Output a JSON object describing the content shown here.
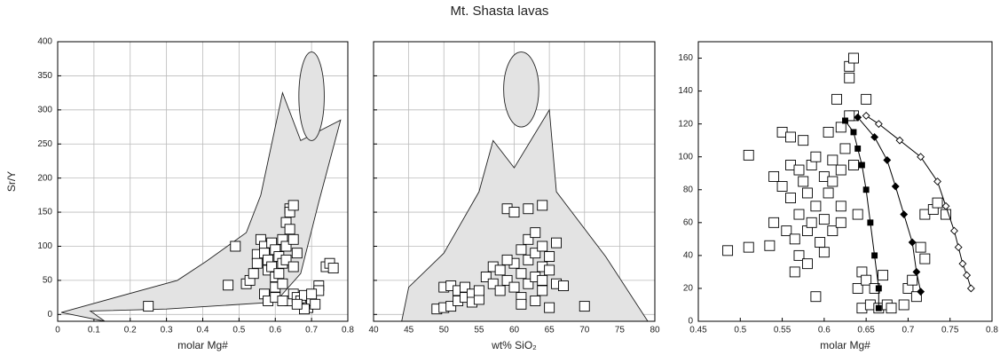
{
  "title": "Mt. Shasta lavas",
  "chart_data": [
    {
      "type": "scatter",
      "xlabel": "molar Mg#",
      "ylabel": "Sr/Y",
      "xlim": [
        0,
        0.8
      ],
      "ylim": [
        -10,
        400
      ],
      "xticks": [
        0,
        0.1,
        0.2,
        0.3,
        0.4,
        0.5,
        0.6,
        0.7,
        0.8
      ],
      "yticks": [
        0,
        50,
        100,
        150,
        200,
        250,
        300,
        350,
        400
      ],
      "grid": true,
      "ytick_labels": true,
      "region_color": "#e3e3e3",
      "regions": [
        {
          "x": [
            0.01,
            0.33,
            0.41,
            0.52,
            0.56,
            0.62,
            0.67,
            0.78,
            0.72,
            0.67,
            0.6,
            0.3,
            0.09,
            0.13
          ],
          "y": [
            3,
            50,
            78,
            120,
            175,
            325,
            255,
            285,
            165,
            60,
            18,
            8,
            5,
            -10
          ]
        }
      ],
      "ellipses": [
        {
          "cx": 0.7,
          "cy": 320,
          "rx": 0.035,
          "ry": 65
        }
      ],
      "series": [
        {
          "marker": "square-open",
          "color": "#000000",
          "x": [
            0.25,
            0.49,
            0.47,
            0.52,
            0.53,
            0.54,
            0.55,
            0.55,
            0.56,
            0.57,
            0.57,
            0.58,
            0.58,
            0.59,
            0.59,
            0.6,
            0.6,
            0.6,
            0.61,
            0.61,
            0.62,
            0.62,
            0.62,
            0.63,
            0.63,
            0.63,
            0.64,
            0.64,
            0.64,
            0.65,
            0.65,
            0.65,
            0.66,
            0.57,
            0.58,
            0.6,
            0.64,
            0.65,
            0.66,
            0.67,
            0.68,
            0.69,
            0.7,
            0.71,
            0.72,
            0.72,
            0.74,
            0.75,
            0.76,
            0.68,
            0.66,
            0.7,
            0.62
          ],
          "y": [
            12,
            100,
            43,
            45,
            50,
            60,
            88,
            75,
            110,
            100,
            90,
            80,
            65,
            105,
            70,
            95,
            55,
            40,
            85,
            60,
            110,
            75,
            45,
            135,
            100,
            80,
            155,
            150,
            125,
            110,
            160,
            70,
            90,
            30,
            20,
            25,
            20,
            30,
            25,
            20,
            28,
            10,
            20,
            15,
            42,
            35,
            70,
            75,
            68,
            8,
            15,
            30,
            20
          ]
        }
      ]
    },
    {
      "type": "scatter",
      "xlabel": "wt% SiO₂",
      "xlim": [
        40,
        80
      ],
      "ylim": [
        -10,
        400
      ],
      "xticks": [
        40,
        45,
        50,
        55,
        60,
        65,
        70,
        75,
        80
      ],
      "yticks": [
        0,
        50,
        100,
        150,
        200,
        250,
        300,
        350,
        400
      ],
      "grid": true,
      "ytick_labels": false,
      "region_color": "#e3e3e3",
      "regions": [
        {
          "x": [
            44,
            45,
            50,
            55,
            57,
            60,
            65,
            66,
            73,
            79
          ],
          "y": [
            -10,
            40,
            90,
            180,
            255,
            215,
            300,
            180,
            85,
            -10
          ]
        }
      ],
      "ellipses": [
        {
          "cx": 61,
          "cy": 330,
          "rx": 2.5,
          "ry": 55
        }
      ],
      "series": [
        {
          "marker": "square-open",
          "color": "#000000",
          "x": [
            49,
            50,
            51,
            50,
            51,
            52,
            52,
            53,
            53,
            54,
            54,
            55,
            56,
            57,
            57,
            58,
            58,
            59,
            59,
            60,
            60,
            60,
            61,
            61,
            61,
            62,
            62,
            62,
            62,
            63,
            63,
            63,
            63,
            64,
            64,
            64,
            64,
            65,
            65,
            65,
            66,
            66,
            67,
            70,
            55,
            59,
            61,
            64
          ],
          "y": [
            8,
            10,
            12,
            40,
            42,
            35,
            20,
            25,
            40,
            30,
            18,
            22,
            55,
            45,
            70,
            65,
            35,
            50,
            155,
            150,
            75,
            40,
            95,
            60,
            25,
            155,
            110,
            80,
            45,
            120,
            90,
            55,
            20,
            160,
            100,
            70,
            35,
            85,
            65,
            10,
            105,
            45,
            42,
            12,
            35,
            80,
            15,
            50
          ]
        }
      ]
    },
    {
      "type": "scatter",
      "xlabel": "molar Mg#",
      "xlim": [
        0.45,
        0.8
      ],
      "ylim": [
        0,
        170
      ],
      "xticks": [
        0.45,
        0.5,
        0.55,
        0.6,
        0.65,
        0.7,
        0.75,
        0.8
      ],
      "yticks": [
        0,
        20,
        40,
        60,
        80,
        100,
        120,
        140,
        160
      ],
      "grid": false,
      "ytick_labels": true,
      "series": [
        {
          "marker": "square-open",
          "color": "#000000",
          "x": [
            0.485,
            0.51,
            0.51,
            0.535,
            0.54,
            0.54,
            0.55,
            0.55,
            0.555,
            0.56,
            0.56,
            0.56,
            0.565,
            0.565,
            0.57,
            0.57,
            0.57,
            0.575,
            0.575,
            0.58,
            0.58,
            0.58,
            0.585,
            0.585,
            0.59,
            0.59,
            0.59,
            0.595,
            0.6,
            0.6,
            0.6,
            0.605,
            0.605,
            0.61,
            0.61,
            0.61,
            0.615,
            0.62,
            0.62,
            0.62,
            0.625,
            0.63,
            0.63,
            0.635,
            0.635,
            0.64,
            0.64,
            0.645,
            0.645,
            0.65,
            0.65,
            0.655,
            0.66,
            0.665,
            0.67,
            0.675,
            0.68,
            0.695,
            0.7,
            0.705,
            0.71,
            0.715,
            0.72,
            0.72,
            0.73,
            0.735,
            0.745,
            0.63,
            0.62,
            0.635
          ],
          "y": [
            43,
            101,
            45,
            46,
            88,
            60,
            82,
            115,
            55,
            112,
            95,
            75,
            50,
            30,
            92,
            65,
            40,
            85,
            110,
            78,
            55,
            35,
            95,
            60,
            100,
            15,
            70,
            48,
            88,
            42,
            62,
            115,
            78,
            98,
            85,
            55,
            135,
            92,
            118,
            70,
            105,
            155,
            148,
            160,
            125,
            65,
            20,
            30,
            8,
            135,
            25,
            10,
            20,
            8,
            28,
            10,
            8,
            10,
            20,
            25,
            15,
            45,
            38,
            65,
            68,
            72,
            65,
            125,
            60,
            95
          ]
        },
        {
          "marker": "square-filled",
          "line": true,
          "color": "#000000",
          "x": [
            0.625,
            0.635,
            0.64,
            0.645,
            0.65,
            0.655,
            0.66,
            0.665,
            0.665
          ],
          "y": [
            122,
            115,
            105,
            95,
            80,
            60,
            40,
            20,
            8
          ]
        },
        {
          "marker": "diamond-filled",
          "line": true,
          "color": "#000000",
          "x": [
            0.64,
            0.66,
            0.675,
            0.685,
            0.695,
            0.705,
            0.71,
            0.715
          ],
          "y": [
            124,
            112,
            98,
            82,
            65,
            48,
            30,
            18
          ]
        },
        {
          "marker": "diamond-open",
          "line": true,
          "color": "#000000",
          "x": [
            0.65,
            0.665,
            0.69,
            0.715,
            0.735,
            0.745,
            0.755,
            0.76,
            0.765,
            0.77,
            0.775
          ],
          "y": [
            125,
            120,
            110,
            100,
            85,
            70,
            55,
            45,
            35,
            28,
            20
          ]
        }
      ]
    }
  ]
}
